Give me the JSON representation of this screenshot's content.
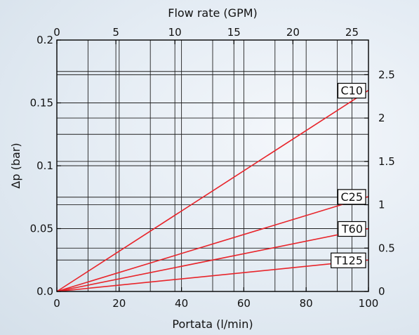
{
  "chart_data": {
    "type": "line",
    "xlabel": "Portata (l/min)",
    "ylabel": "Δp (bar)",
    "x2label": "Flow rate (GPM)",
    "y2label": "",
    "xlim": [
      0,
      100
    ],
    "ylim": [
      0,
      0.2
    ],
    "x2lim": [
      0,
      26.4
    ],
    "y2lim": [
      0,
      2.9
    ],
    "x_ticks": [
      0,
      20,
      40,
      60,
      80,
      100
    ],
    "x_tick_labels": [
      "0",
      "20",
      "40",
      "60",
      "80",
      "100"
    ],
    "y_ticks": [
      0,
      0.05,
      0.1,
      0.15,
      0.2
    ],
    "y_tick_labels": [
      "0.0",
      "0.05",
      "0.1",
      "0.15",
      "0.2"
    ],
    "x2_ticks": [
      0,
      5,
      10,
      15,
      20,
      25
    ],
    "x2_tick_labels": [
      "0",
      "5",
      "10",
      "15",
      "20",
      "25"
    ],
    "y2_ticks": [
      0,
      0.5,
      1,
      1.5,
      2,
      2.5
    ],
    "y2_tick_labels": [
      "0",
      "0.5",
      "1",
      "1.5",
      "2",
      "2.5"
    ],
    "grid": true,
    "line_color": "#e8242a",
    "series": [
      {
        "name": "C10",
        "x": [
          0,
          100
        ],
        "y": [
          0,
          0.16
        ]
      },
      {
        "name": "C25",
        "x": [
          0,
          100
        ],
        "y": [
          0,
          0.0755
        ]
      },
      {
        "name": "T60",
        "x": [
          0,
          100
        ],
        "y": [
          0,
          0.05
        ]
      },
      {
        "name": "T125",
        "x": [
          0,
          100
        ],
        "y": [
          0,
          0.025
        ]
      }
    ]
  }
}
